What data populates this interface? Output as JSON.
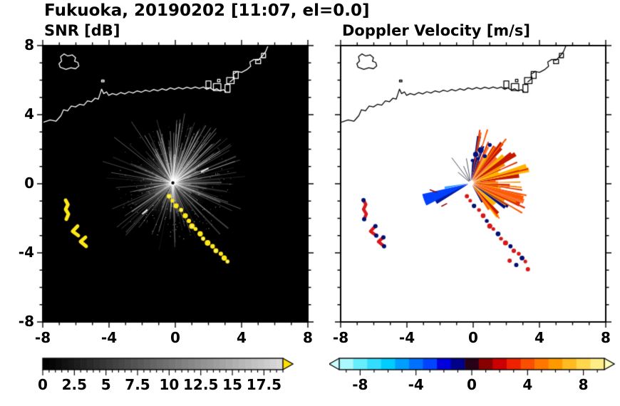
{
  "title": "Fukuoka, 20190202 [11:07, el=0.0]",
  "panels": {
    "left": {
      "label": "SNR [dB]"
    },
    "right": {
      "label": "Doppler Velocity [m/s]"
    }
  },
  "map": {
    "coast_main": [
      [
        -8,
        3.55
      ],
      [
        -7.55,
        3.7
      ],
      [
        -7.2,
        3.62
      ],
      [
        -6.9,
        3.95
      ],
      [
        -6.75,
        4.28
      ],
      [
        -6.5,
        4.22
      ],
      [
        -6.28,
        4.5
      ],
      [
        -6.02,
        4.45
      ],
      [
        -5.78,
        4.6
      ],
      [
        -5.52,
        4.55
      ],
      [
        -5.3,
        4.8
      ],
      [
        -5.05,
        4.75
      ],
      [
        -4.85,
        4.95
      ],
      [
        -4.65,
        4.9
      ],
      [
        -4.55,
        5.18
      ],
      [
        -4.45,
        5.48
      ],
      [
        -4.32,
        5.22
      ],
      [
        -4.15,
        5.32
      ],
      [
        -4.02,
        5.12
      ],
      [
        -3.8,
        5.22
      ],
      [
        -3.55,
        5.15
      ],
      [
        -3.3,
        5.28
      ],
      [
        -3.05,
        5.2
      ],
      [
        -2.8,
        5.33
      ],
      [
        -2.55,
        5.25
      ],
      [
        -2.3,
        5.38
      ],
      [
        -2.05,
        5.3
      ],
      [
        -1.8,
        5.42
      ],
      [
        -1.55,
        5.34
      ],
      [
        -1.3,
        5.46
      ],
      [
        -1.05,
        5.38
      ],
      [
        -0.8,
        5.5
      ],
      [
        -0.55,
        5.42
      ],
      [
        -0.3,
        5.55
      ],
      [
        -0.05,
        5.47
      ],
      [
        0.2,
        5.57
      ],
      [
        0.45,
        5.49
      ],
      [
        0.7,
        5.59
      ],
      [
        0.95,
        5.51
      ],
      [
        1.2,
        5.6
      ],
      [
        1.45,
        5.52
      ],
      [
        1.7,
        5.6
      ],
      [
        1.9,
        5.47
      ],
      [
        2.1,
        5.55
      ],
      [
        2.3,
        5.42
      ],
      [
        2.5,
        5.5
      ],
      [
        2.7,
        5.37
      ],
      [
        2.9,
        5.45
      ],
      [
        3.05,
        5.32
      ]
    ],
    "coast_upper": [
      [
        3.3,
        5.9
      ],
      [
        3.55,
        6.1
      ],
      [
        3.5,
        6.35
      ],
      [
        3.75,
        6.5
      ],
      [
        4.0,
        6.45
      ],
      [
        4.3,
        6.6
      ],
      [
        4.55,
        6.8
      ],
      [
        4.5,
        7.05
      ],
      [
        4.75,
        7.2
      ],
      [
        5.0,
        7.15
      ],
      [
        5.25,
        7.4
      ],
      [
        5.45,
        7.65
      ],
      [
        5.6,
        8.0
      ]
    ],
    "island": [
      [
        -6.95,
        6.75
      ],
      [
        -6.6,
        6.62
      ],
      [
        -6.3,
        6.72
      ],
      [
        -6.02,
        6.66
      ],
      [
        -5.82,
        6.82
      ],
      [
        -5.88,
        7.02
      ],
      [
        -6.08,
        7.1
      ],
      [
        -6.02,
        7.3
      ],
      [
        -6.22,
        7.46
      ],
      [
        -6.5,
        7.4
      ],
      [
        -6.72,
        7.52
      ],
      [
        -6.92,
        7.36
      ],
      [
        -6.86,
        7.1
      ],
      [
        -7.02,
        6.95
      ]
    ],
    "port_blocks": [
      [
        1.85,
        5.55,
        2.15,
        5.95
      ],
      [
        2.3,
        5.4,
        2.75,
        5.8
      ],
      [
        2.55,
        5.9,
        2.7,
        6.05
      ],
      [
        3.0,
        5.3,
        3.3,
        5.75
      ],
      [
        3.1,
        5.8,
        3.55,
        6.15
      ],
      [
        3.5,
        6.1,
        3.8,
        6.5
      ],
      [
        4.85,
        6.95,
        5.15,
        7.2
      ],
      [
        5.2,
        7.3,
        5.45,
        7.55
      ],
      [
        -4.45,
        5.9,
        -4.3,
        6.0
      ]
    ],
    "chain": [
      [
        -0.38,
        -0.72,
        0.14
      ],
      [
        -0.18,
        -0.98,
        0.12
      ],
      [
        0.05,
        -1.28,
        0.15
      ],
      [
        0.35,
        -1.52,
        0.13
      ],
      [
        0.6,
        -1.85,
        0.16
      ],
      [
        0.82,
        -2.15,
        0.13
      ],
      [
        1.0,
        -2.45,
        0.17
      ],
      [
        1.22,
        -2.62,
        0.12
      ],
      [
        1.5,
        -2.9,
        0.16
      ],
      [
        1.68,
        -3.18,
        0.13
      ],
      [
        1.95,
        -3.42,
        0.17
      ],
      [
        2.25,
        -3.62,
        0.14
      ],
      [
        2.45,
        -3.88,
        0.15
      ],
      [
        2.75,
        -4.05,
        0.13
      ],
      [
        2.95,
        -4.3,
        0.16
      ],
      [
        3.15,
        -4.5,
        0.12
      ]
    ],
    "squiggles": [
      [
        [
          -6.62,
          -0.95
        ],
        [
          -6.48,
          -1.2
        ],
        [
          -6.62,
          -1.48
        ],
        [
          -6.45,
          -1.75
        ],
        [
          -6.58,
          -2.05
        ]
      ],
      [
        [
          -5.9,
          -2.45
        ],
        [
          -6.2,
          -2.75
        ],
        [
          -5.85,
          -3.0
        ]
      ],
      [
        [
          -5.42,
          -3.1
        ],
        [
          -5.72,
          -3.35
        ],
        [
          -5.38,
          -3.62
        ]
      ]
    ]
  },
  "chart_data": [
    {
      "type": "heatmap",
      "title": "SNR [dB]",
      "xlim": [
        -8,
        8
      ],
      "ylim": [
        -8,
        8
      ],
      "x_ticks": [
        -8,
        -4,
        0,
        4,
        8
      ],
      "y_ticks": [
        8,
        4,
        0,
        -4,
        -8
      ],
      "minor_tick_step": 1,
      "radar_center": [
        -0.15,
        0.05
      ],
      "background_color": "#000000",
      "coast_color": "#ffffff",
      "high_snr_color": "#ffe81a",
      "white_dashes": [
        [
          1.55,
          0.68,
          2.0,
          0.9
        ],
        [
          -2.0,
          -1.75,
          -1.68,
          -1.5
        ]
      ],
      "texture": {
        "seed": 12345,
        "ray_count": 160,
        "bright_ray_count": 60,
        "speckle_count": 260
      },
      "colorbar": {
        "min": 0,
        "max": 19,
        "step": 0.5,
        "minor_step": 0.5,
        "major_step": 2.5,
        "ticks": [
          0,
          2.5,
          5,
          7.5,
          10,
          12.5,
          15,
          17.5
        ],
        "start_color": "#000000",
        "end_color": "#d9d9d9",
        "overflow_color": "#ffe000",
        "units": "dB"
      }
    },
    {
      "type": "heatmap",
      "title": "Doppler Velocity [m/s]",
      "xlim": [
        -8,
        8
      ],
      "ylim": [
        -8,
        8
      ],
      "x_ticks": [
        -8,
        -4,
        0,
        4,
        8
      ],
      "y_ticks": [
        8,
        4,
        0,
        -4,
        -8
      ],
      "minor_tick_step": 1,
      "radar_center": [
        -0.15,
        0.05
      ],
      "background_color": "#ffffff",
      "coast_color": "#000000",
      "fan": {
        "start": -62,
        "end": 86,
        "step": 4,
        "max_radius": 3.6,
        "colors": [
          "#e03000",
          "#ff5a00",
          "#ff8c00",
          "#c41800",
          "#ffb400",
          "#ff7030"
        ],
        "navy": "#001080",
        "spike_count": 22,
        "seed": 777
      },
      "navy_blobs": [
        [
          0.15,
          1.7,
          0.16
        ],
        [
          0.45,
          1.95,
          0.18
        ],
        [
          0.7,
          1.6,
          0.12
        ],
        [
          -0.05,
          1.35,
          0.1
        ],
        [
          1.0,
          2.25,
          0.12
        ],
        [
          0.3,
          1.45,
          0.1
        ]
      ],
      "blue_wedges": [
        [
          203,
          212,
          2.4,
          "#0018a0"
        ],
        [
          193,
          207,
          3.0,
          "#0040ff"
        ],
        [
          188,
          193,
          1.6,
          "#40a0ff"
        ]
      ],
      "spokes": [
        [
          100,
          1.5
        ],
        [
          113,
          1.1
        ],
        [
          127,
          1.9
        ],
        [
          140,
          1.0
        ]
      ],
      "scatter_red": "#d81818",
      "scatter_navy": "#001070",
      "extra_specks": [
        [
          2.2,
          -4.45
        ],
        [
          2.6,
          -4.7
        ],
        [
          3.3,
          -4.95
        ]
      ],
      "red_dashes": [
        [
          -2.6,
          -0.35,
          -2.2,
          -0.5
        ],
        [
          -1.9,
          -1.3,
          -1.6,
          -1.15
        ]
      ],
      "colorbar": {
        "min": -9.5,
        "max": 9.5,
        "step": 1,
        "minor_step": 1,
        "major_step": 4,
        "ticks": [
          -8,
          -4,
          0,
          4,
          8
        ],
        "units": "m/s",
        "palette": [
          [
            -9.5,
            "#ccffff"
          ],
          [
            -8,
            "#66eeff"
          ],
          [
            -6,
            "#00ccff"
          ],
          [
            -4.5,
            "#0088ff"
          ],
          [
            -3,
            "#0044ff"
          ],
          [
            -2,
            "#0000dd"
          ],
          [
            -1,
            "#000088"
          ],
          [
            -0.2,
            "#100030"
          ],
          [
            0.2,
            "#400000"
          ],
          [
            1,
            "#880000"
          ],
          [
            2,
            "#cc0000"
          ],
          [
            3,
            "#ee2200"
          ],
          [
            4.5,
            "#ff6600"
          ],
          [
            6,
            "#ff9900"
          ],
          [
            7.5,
            "#ffcc33"
          ],
          [
            9,
            "#ffee88"
          ],
          [
            9.5,
            "#ffffbb"
          ]
        ]
      }
    }
  ]
}
